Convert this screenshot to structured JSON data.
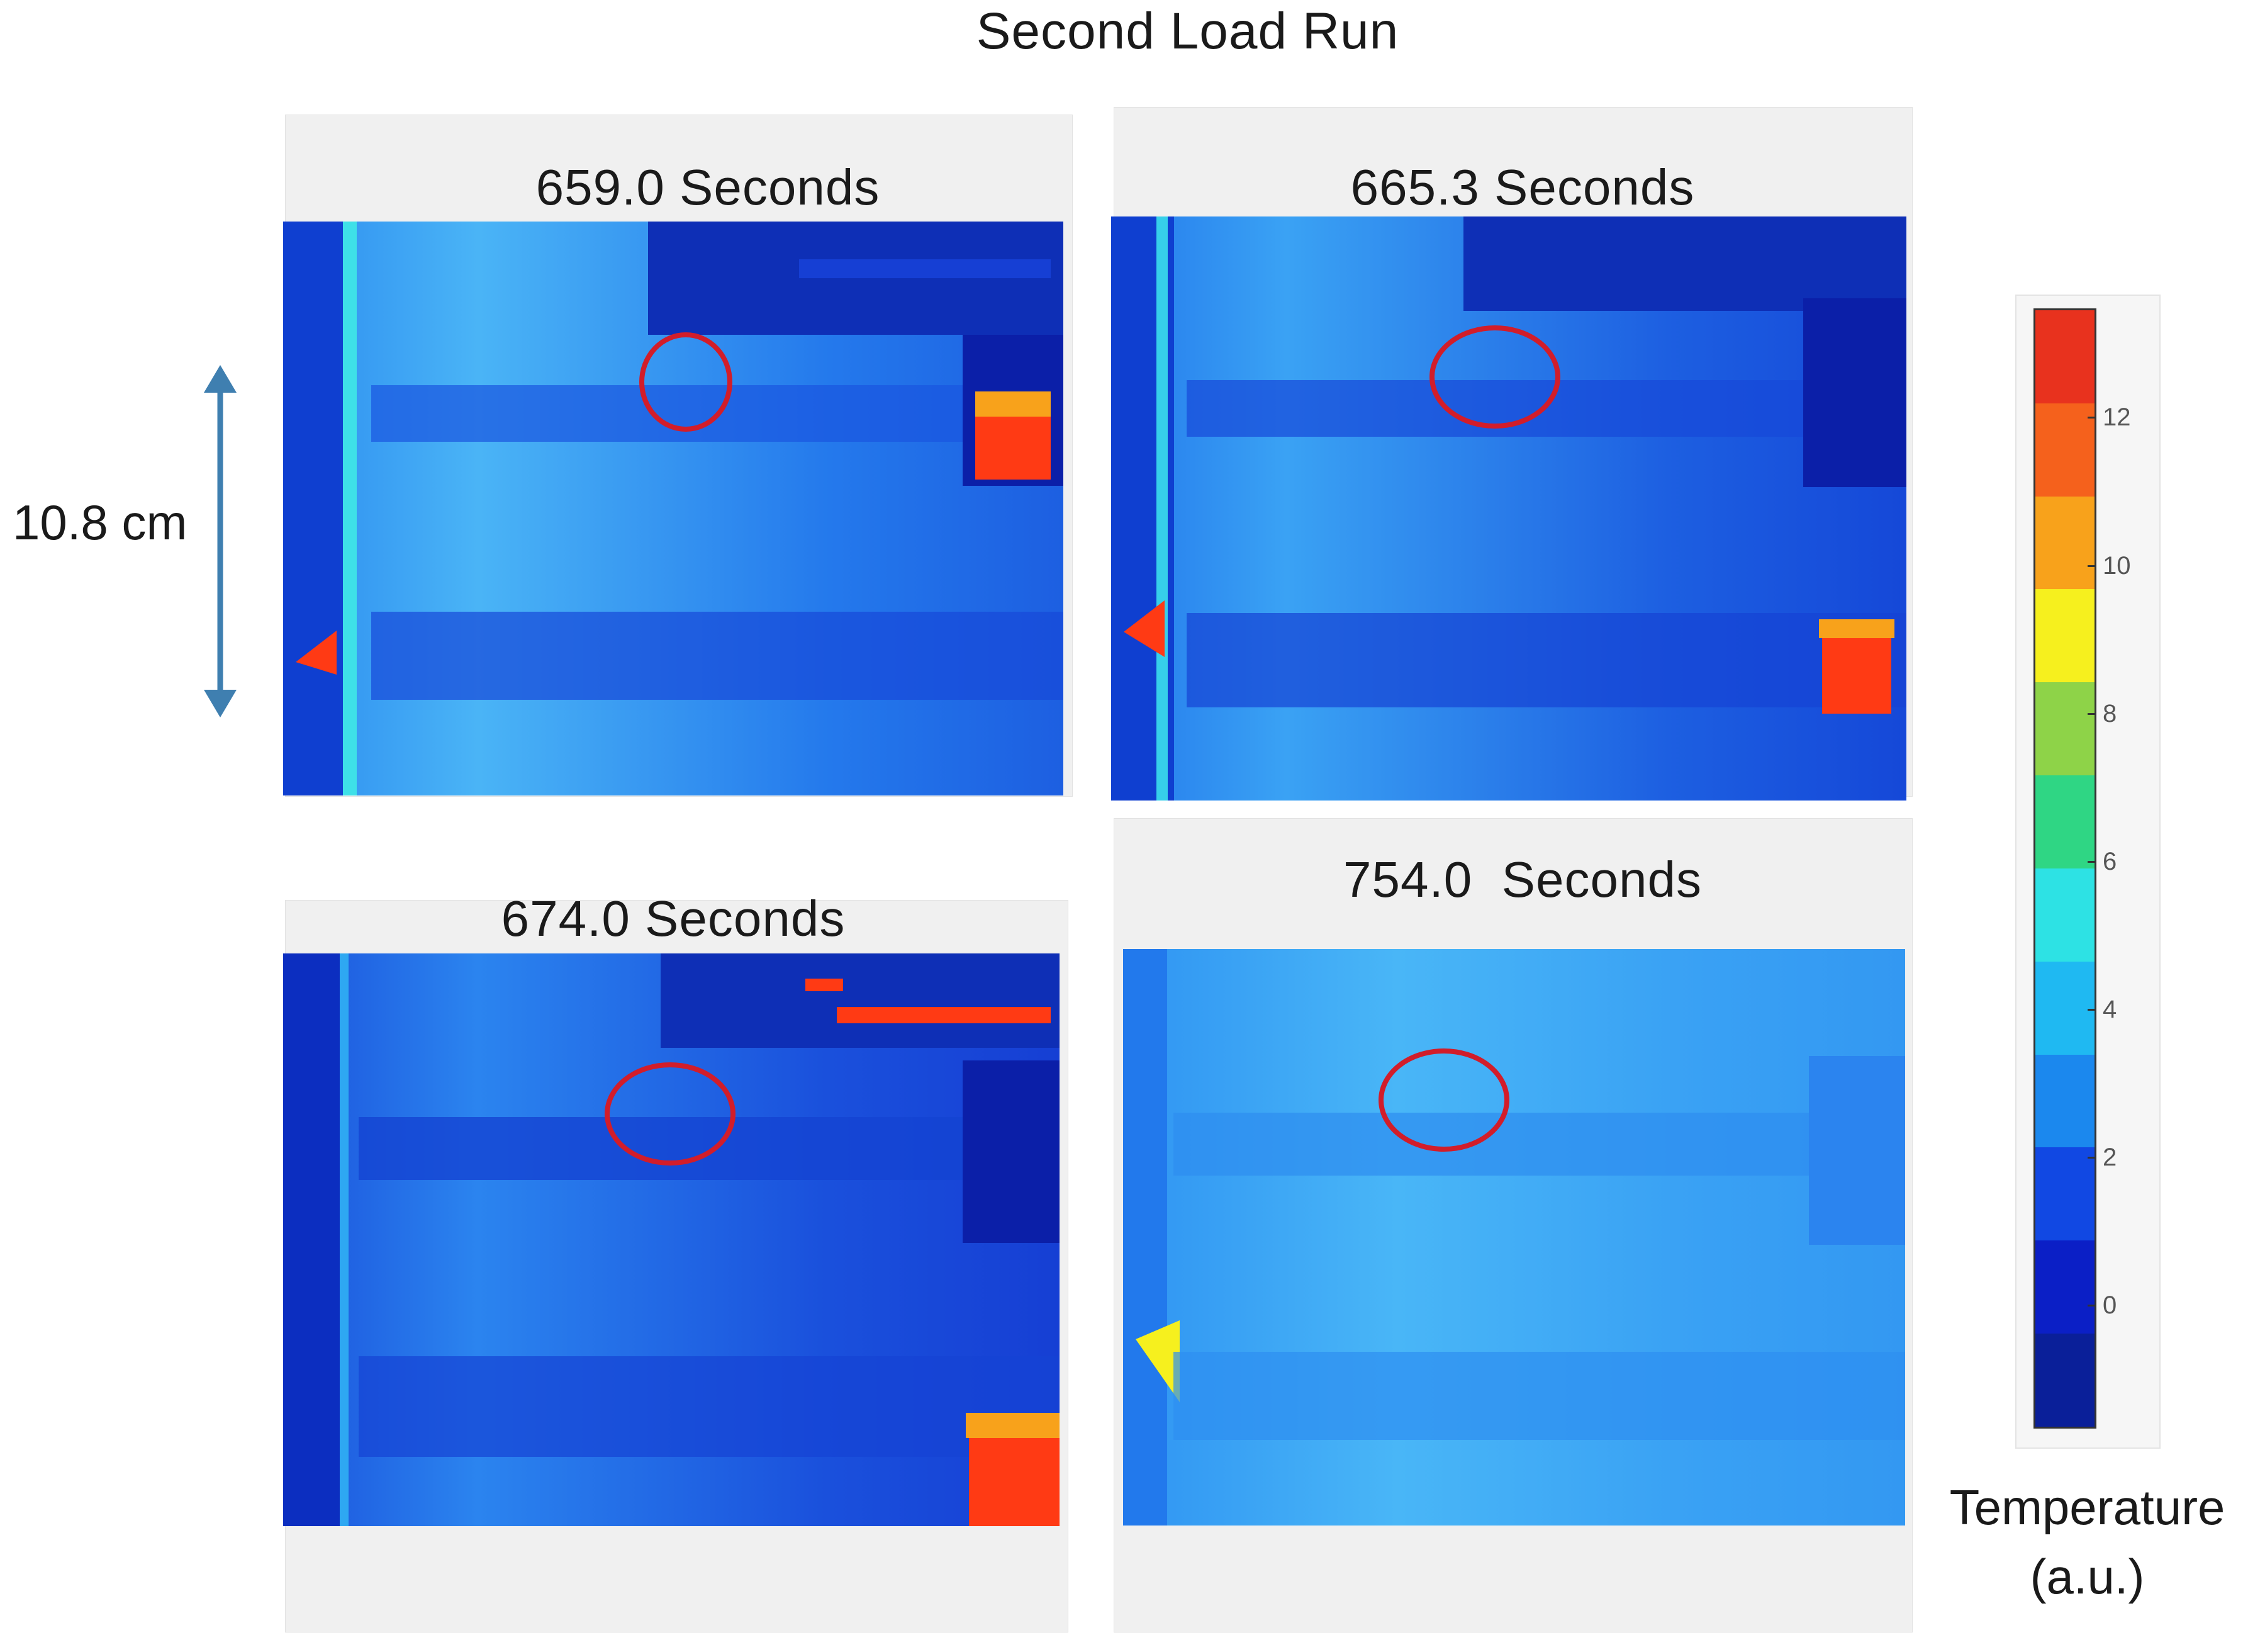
{
  "figure": {
    "title": "Second Load Run"
  },
  "scale": {
    "label": "10.8 cm"
  },
  "panels": [
    {
      "title": "659.0 Seconds"
    },
    {
      "title": "665.3 Seconds"
    },
    {
      "title": "674.0 Seconds"
    },
    {
      "title": "754.0  Seconds"
    }
  ],
  "colorbar": {
    "title_line1": "Temperature",
    "title_line2": "(a.u.)",
    "ticks": [
      "12",
      "10",
      "8",
      "6",
      "4",
      "2",
      "0"
    ],
    "colors": [
      "#e8321e",
      "#f5611c",
      "#f8a21b",
      "#f6f01e",
      "#8ed348",
      "#2fd684",
      "#2de2e4",
      "#1fb9f2",
      "#1b88ee",
      "#1148e3",
      "#0b1fc6",
      "#0a1f99"
    ]
  },
  "colors": {
    "marker_circle": "#d21d2a",
    "scale_arrow": "#3f7fb0",
    "thermal_base": "#1f6ee8",
    "thermal_light": "#45aaf5",
    "thermal_dark": "#0c2ec0",
    "hot_spot": "#ff3a14"
  }
}
